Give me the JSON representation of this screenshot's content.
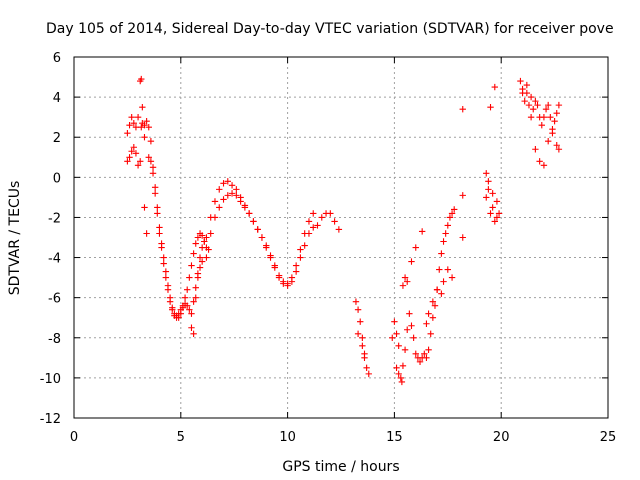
{
  "chart_data": {
    "type": "scatter",
    "title": "Day 105 of 2014, Sidereal Day-to-day VTEC variation (SDTVAR) for receiver pove",
    "xlabel": "GPS time / hours",
    "ylabel": "SDTVAR / TECUs",
    "xlim": [
      0,
      25
    ],
    "ylim": [
      -12,
      6
    ],
    "xticks": [
      0,
      5,
      10,
      15,
      20,
      25
    ],
    "xtick_labels": [
      "0",
      "5",
      "10",
      "15",
      "20",
      "25"
    ],
    "yticks": [
      -12,
      -10,
      -8,
      -6,
      -4,
      -2,
      0,
      2,
      4,
      6
    ],
    "ytick_labels": [
      "-12",
      "-10",
      "-8",
      "-6",
      "-4",
      "-2",
      "0",
      "2",
      "4",
      "6"
    ],
    "grid": true,
    "marker": "plus",
    "color": "#ff0000",
    "series": [
      {
        "name": "SDTVAR",
        "x": [
          2.5,
          2.6,
          2.7,
          2.8,
          2.9,
          3.0,
          3.1,
          3.15,
          3.2,
          3.3,
          3.4,
          3.5,
          3.6,
          3.7,
          3.8,
          3.9,
          4.0,
          4.1,
          4.2,
          4.3,
          4.4,
          4.5,
          4.6,
          4.7,
          4.8,
          4.9,
          5.0,
          5.1,
          5.2,
          5.3,
          5.4,
          5.5,
          5.6,
          5.7,
          5.8,
          5.9,
          6.0,
          6.1,
          6.2,
          6.4,
          6.6,
          6.8,
          7.0,
          7.2,
          7.4,
          7.6,
          7.8,
          8.0,
          8.2,
          8.4,
          8.6,
          8.8,
          9.0,
          9.2,
          9.4,
          9.6,
          9.8,
          10.0,
          10.2,
          10.4,
          10.6,
          10.8,
          11.0,
          11.2,
          11.4,
          11.6,
          11.8,
          12.0,
          12.2,
          12.4,
          2.5,
          2.6,
          2.7,
          2.8,
          2.9,
          3.0,
          3.1,
          3.15,
          3.2,
          3.3,
          3.5,
          3.6,
          3.7,
          3.8,
          3.9,
          4.0,
          4.1,
          4.2,
          4.3,
          4.4,
          4.5,
          4.6,
          4.7,
          4.8,
          4.9,
          5.0,
          5.1,
          5.2,
          5.3,
          5.4,
          5.5,
          5.6,
          5.7,
          5.8,
          5.9,
          6.0,
          6.2,
          6.4,
          6.6,
          6.8,
          7.0,
          7.2,
          7.4,
          7.6,
          7.8,
          8.0,
          8.2,
          8.4,
          8.6,
          8.8,
          9.0,
          9.2,
          9.4,
          9.6,
          9.8,
          10.0,
          10.2,
          10.4,
          10.6,
          10.8,
          11.0,
          11.2,
          3.3,
          3.4,
          5.5,
          5.6,
          5.7,
          5.8,
          5.9,
          6.0,
          6.1,
          6.2,
          6.3,
          13.2,
          13.3,
          13.4,
          13.5,
          13.6,
          13.7,
          13.8,
          13.3,
          13.5,
          13.6,
          14.9,
          15.0,
          15.1,
          15.2,
          15.3,
          15.35,
          15.4,
          15.5,
          15.6,
          15.7,
          15.8,
          15.9,
          16.0,
          16.1,
          16.2,
          16.3,
          16.4,
          16.5,
          16.6,
          16.7,
          16.8,
          16.9,
          17.0,
          17.1,
          17.2,
          17.3,
          17.4,
          17.5,
          17.6,
          17.7,
          17.8,
          15.1,
          15.2,
          15.4,
          15.5,
          15.6,
          15.8,
          16.0,
          16.3,
          16.5,
          16.6,
          16.8,
          17.0,
          17.2,
          17.3,
          17.5,
          17.7,
          18.2,
          18.2,
          18.2,
          19.3,
          19.4,
          19.5,
          19.6,
          19.7,
          19.8,
          19.9,
          19.3,
          19.4,
          19.6,
          19.8,
          19.5,
          19.7,
          20.9,
          21.0,
          21.1,
          21.2,
          21.3,
          21.4,
          21.5,
          21.6,
          21.7,
          21.8,
          21.9,
          22.0,
          22.1,
          22.2,
          22.3,
          22.4,
          22.5,
          22.6,
          22.7,
          21.0,
          21.2,
          21.4,
          21.6,
          21.8,
          22.0,
          22.2,
          22.4,
          22.6,
          22.7
        ],
        "y": [
          2.2,
          2.6,
          3.0,
          2.7,
          2.5,
          3.0,
          4.8,
          4.9,
          3.5,
          2.6,
          2.8,
          2.5,
          1.8,
          0.5,
          -0.5,
          -1.5,
          -2.5,
          -3.3,
          -4.0,
          -4.7,
          -5.4,
          -6.0,
          -6.5,
          -6.9,
          -6.9,
          -6.8,
          -6.6,
          -6.4,
          -6.0,
          -5.6,
          -5.0,
          -4.4,
          -3.8,
          -3.3,
          -3.0,
          -2.8,
          -2.9,
          -3.2,
          -3.0,
          -2.0,
          -1.2,
          -0.6,
          -0.3,
          -0.2,
          -0.4,
          -0.6,
          -1.0,
          -1.4,
          -1.8,
          -2.2,
          -2.6,
          -3.0,
          -3.5,
          -4.0,
          -4.5,
          -5.0,
          -5.3,
          -5.3,
          -5.0,
          -4.4,
          -3.6,
          -2.8,
          -2.2,
          -1.8,
          -2.4,
          -2.0,
          -1.8,
          -1.8,
          -2.2,
          -2.6,
          0.8,
          1.0,
          1.3,
          1.5,
          1.2,
          0.6,
          0.8,
          2.5,
          2.7,
          2.0,
          1.0,
          0.8,
          0.2,
          -0.8,
          -1.8,
          -2.8,
          -3.5,
          -4.3,
          -5.0,
          -5.6,
          -6.2,
          -6.6,
          -6.8,
          -7.0,
          -7.0,
          -6.8,
          -6.5,
          -6.3,
          -6.4,
          -6.6,
          -6.8,
          -6.2,
          -5.5,
          -5.0,
          -4.5,
          -4.2,
          -3.5,
          -2.8,
          -2.0,
          -1.5,
          -1.1,
          -0.9,
          -0.8,
          -0.9,
          -1.2,
          -1.5,
          -1.8,
          -2.2,
          -2.6,
          -3.0,
          -3.4,
          -3.9,
          -4.4,
          -4.9,
          -5.2,
          -5.4,
          -5.2,
          -4.7,
          -4.0,
          -3.4,
          -2.8,
          -2.5,
          -1.5,
          -2.8,
          -7.5,
          -7.8,
          -6.0,
          -4.8,
          -4.0,
          -3.5,
          -3.2,
          -4.0,
          -3.6,
          -6.2,
          -6.6,
          -7.2,
          -8.0,
          -8.8,
          -9.5,
          -9.8,
          -7.8,
          -8.4,
          -9.0,
          -8.0,
          -7.2,
          -7.8,
          -8.4,
          -10.0,
          -10.2,
          -9.4,
          -8.6,
          -7.6,
          -6.8,
          -7.4,
          -8.0,
          -8.8,
          -9.0,
          -9.2,
          -9.0,
          -8.8,
          -9.0,
          -8.6,
          -7.8,
          -7.0,
          -6.4,
          -5.6,
          -4.6,
          -3.8,
          -3.2,
          -2.8,
          -2.4,
          -2.0,
          -1.8,
          -1.6,
          -9.5,
          -9.8,
          -5.4,
          -5.0,
          -5.2,
          -4.2,
          -3.5,
          -2.7,
          -7.3,
          -6.8,
          -6.2,
          -5.6,
          -5.8,
          -5.2,
          -4.6,
          -5.0,
          3.4,
          -0.9,
          -3.0,
          -1.0,
          -0.2,
          -1.8,
          -0.8,
          -2.2,
          -1.2,
          -1.8,
          0.2,
          -0.6,
          -1.5,
          -2.0,
          3.5,
          4.5,
          4.8,
          4.4,
          3.8,
          4.2,
          3.6,
          4.0,
          3.4,
          3.8,
          3.6,
          3.0,
          2.6,
          3.0,
          3.4,
          3.6,
          3.0,
          2.4,
          2.8,
          3.2,
          3.6,
          4.2,
          4.6,
          3.0,
          1.4,
          0.8,
          0.6,
          1.8,
          2.2,
          1.6,
          1.4
        ]
      }
    ]
  }
}
